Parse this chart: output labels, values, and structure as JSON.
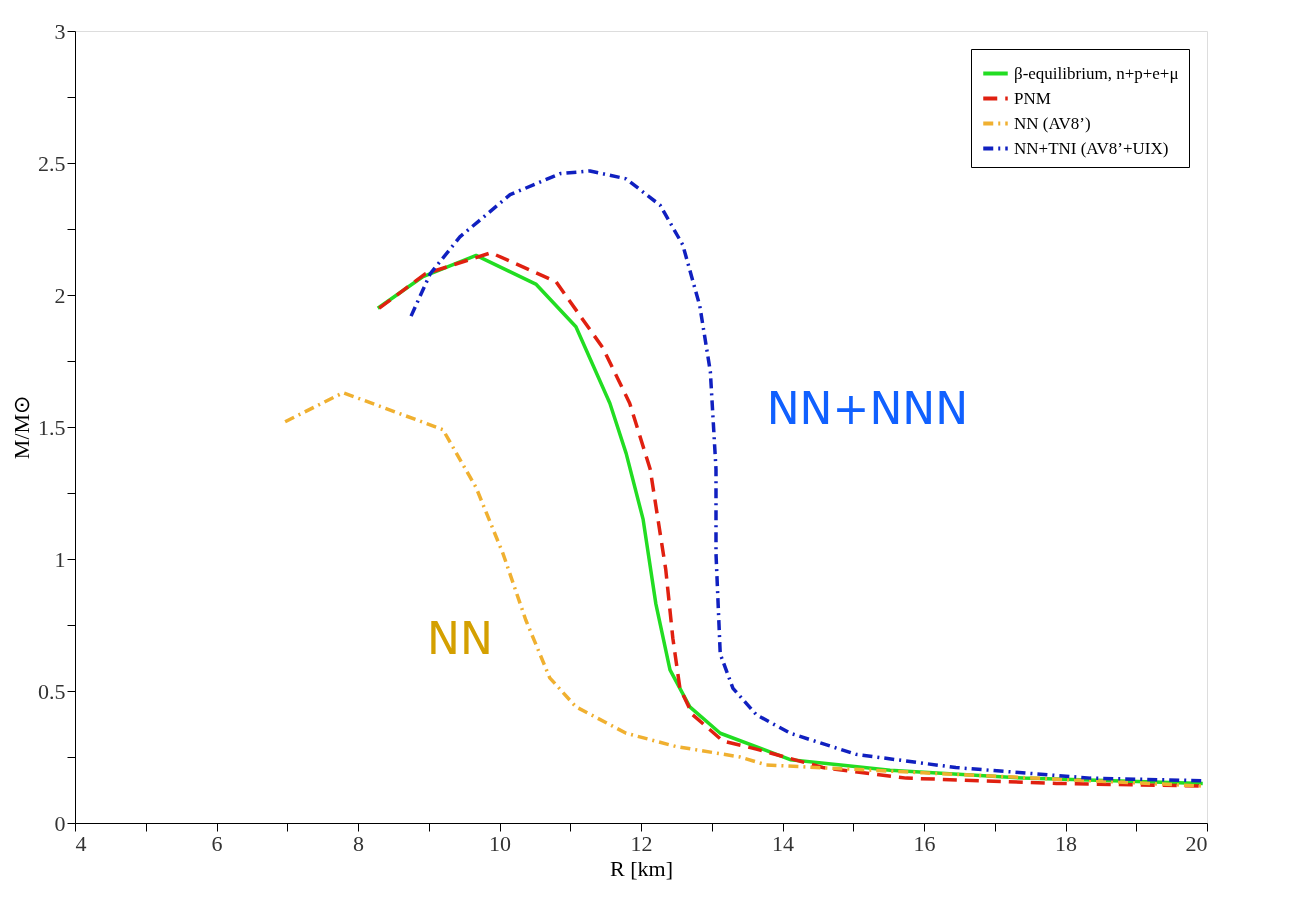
{
  "chart_data": {
    "type": "line",
    "xlabel": "R [km]",
    "ylabel": "M/M⊙",
    "xlim": [
      4,
      20
    ],
    "ylim": [
      0,
      3
    ],
    "xticks": [
      4,
      {
        "value": 5,
        "label": null
      },
      6,
      {
        "value": 7,
        "label": null
      },
      8,
      {
        "value": 9,
        "label": null
      },
      10,
      {
        "value": 11,
        "label": null
      },
      12,
      {
        "value": 13,
        "label": null
      },
      14,
      {
        "value": 15,
        "label": null
      },
      16,
      {
        "value": 17,
        "label": null
      },
      18,
      {
        "value": 19,
        "label": null
      },
      20
    ],
    "yticks": [
      0,
      {
        "value": 0.25,
        "label": null
      },
      0.5,
      {
        "value": 0.75,
        "label": null
      },
      1,
      {
        "value": 1.25,
        "label": null
      },
      1.5,
      {
        "value": 1.75,
        "label": null
      },
      2,
      {
        "value": 2.25,
        "label": null
      },
      2.5,
      {
        "value": 2.75,
        "label": null
      },
      3
    ],
    "grid": false,
    "legend": "top right",
    "marker": "none",
    "series": [
      {
        "name": "β-equilibrium, n+p+e+μ",
        "color": "#22dd22",
        "line_style": "solid",
        "x": [
          8.28,
          8.92,
          9.67,
          10.52,
          11.08,
          11.56,
          11.79,
          12.03,
          12.21,
          12.41,
          12.69,
          13.12,
          14.11,
          15.52,
          17.4,
          19.94
        ],
        "values": [
          1.95,
          2.07,
          2.15,
          2.04,
          1.88,
          1.59,
          1.4,
          1.15,
          0.83,
          0.58,
          0.44,
          0.34,
          0.24,
          0.2,
          0.17,
          0.15
        ]
      },
      {
        "name": "PNM",
        "color": "#e02010",
        "line_style": "dashed",
        "x": [
          8.3,
          8.95,
          9.88,
          10.8,
          11.46,
          11.84,
          12.13,
          12.35,
          12.45,
          12.55,
          12.73,
          13.16,
          13.63,
          14.57,
          15.75,
          17.87,
          19.9
        ],
        "values": [
          1.95,
          2.08,
          2.16,
          2.05,
          1.8,
          1.59,
          1.34,
          0.96,
          0.7,
          0.51,
          0.41,
          0.31,
          0.28,
          0.21,
          0.17,
          0.15,
          0.14
        ]
      },
      {
        "name": "NN (AV8’)",
        "color": "#f0b030",
        "line_style": "dashdot",
        "x": [
          6.97,
          7.79,
          9.2,
          9.67,
          10.05,
          10.37,
          10.71,
          11.08,
          11.79,
          12.49,
          13.4,
          13.77,
          15.99,
          19.94
        ],
        "values": [
          1.52,
          1.63,
          1.49,
          1.27,
          1.02,
          0.77,
          0.55,
          0.44,
          0.34,
          0.29,
          0.25,
          0.22,
          0.19,
          0.14
        ]
      },
      {
        "name": "NN+TNI (AV8’+UIX)",
        "color": "#1020c0",
        "line_style": "dashdot",
        "x": [
          8.75,
          9.02,
          9.44,
          10.15,
          10.86,
          11.28,
          11.79,
          12.27,
          12.59,
          12.83,
          12.98,
          13.06,
          13.06,
          13.12,
          13.3,
          13.63,
          14.11,
          15.04,
          16.45,
          18.35,
          19.94
        ],
        "values": [
          1.92,
          2.08,
          2.22,
          2.38,
          2.46,
          2.47,
          2.44,
          2.34,
          2.19,
          1.96,
          1.71,
          1.34,
          1.02,
          0.64,
          0.51,
          0.41,
          0.34,
          0.26,
          0.21,
          0.17,
          0.16
        ]
      }
    ],
    "annotations": [
      "NN+NNN",
      "NN"
    ]
  }
}
